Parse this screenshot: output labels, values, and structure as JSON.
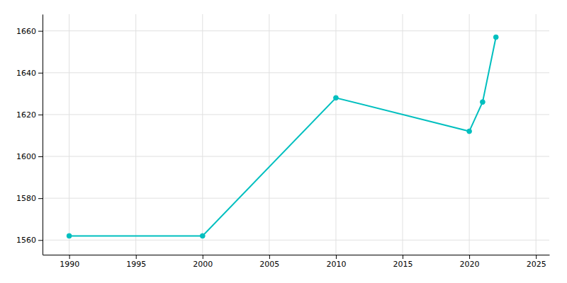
{
  "chart_data": {
    "type": "line",
    "x": [
      1990,
      2000,
      2010,
      2020,
      2021,
      2022
    ],
    "values": [
      1562,
      1562,
      1628,
      1612,
      1626,
      1657
    ],
    "color": "#00BFBF",
    "marker": "circle",
    "xlim": [
      1988,
      2026
    ],
    "ylim": [
      1553,
      1668
    ],
    "xticks": [
      1990,
      1995,
      2000,
      2005,
      2010,
      2015,
      2020,
      2025
    ],
    "yticks": [
      1560,
      1580,
      1600,
      1620,
      1640,
      1660
    ],
    "grid": true
  }
}
